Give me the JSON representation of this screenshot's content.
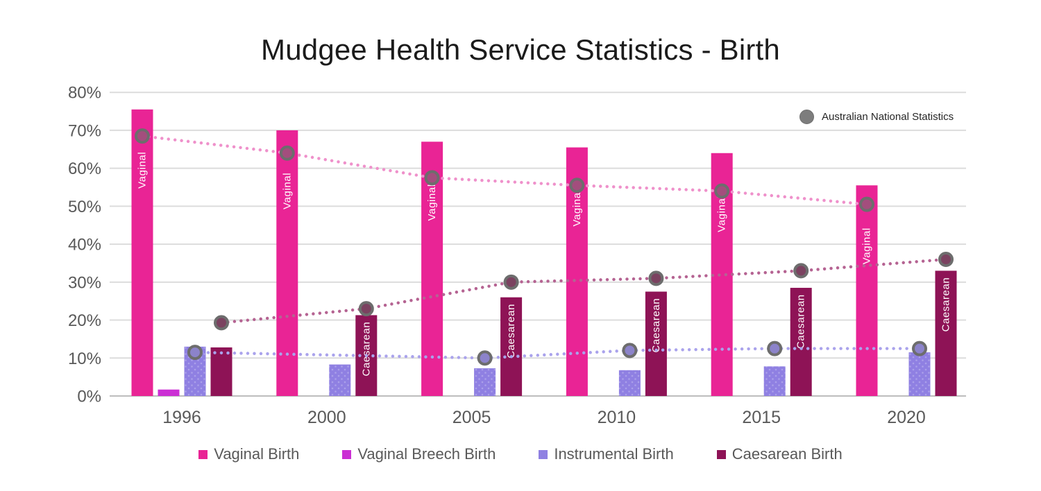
{
  "chart_data": {
    "type": "bar",
    "title": "Mudgee Health Service Statistics - Birth",
    "categories": [
      "1996",
      "2000",
      "2005",
      "2010",
      "2015",
      "2020"
    ],
    "y_axis": {
      "min": 0,
      "max": 80,
      "step": 10,
      "tick_labels": [
        "0%",
        "10%",
        "20%",
        "30%",
        "40%",
        "50%",
        "60%",
        "70%",
        "80%"
      ],
      "grid": true
    },
    "series": [
      {
        "name": "Vaginal Birth",
        "color": "#e92495",
        "in_bar_label": "Vaginal",
        "label_shown": [
          true,
          true,
          true,
          true,
          true,
          true
        ],
        "values": [
          75.5,
          70,
          67,
          65.5,
          64,
          55.5
        ]
      },
      {
        "name": "Vaginal Breech Birth",
        "color": "#cb2fd4",
        "in_bar_label": "",
        "label_shown": [
          false,
          false,
          false,
          false,
          false,
          false
        ],
        "values": [
          1.7,
          0,
          0,
          0,
          0,
          0
        ]
      },
      {
        "name": "Instrumental Birth",
        "color": "#8f80e2",
        "in_bar_label": "",
        "label_shown": [
          false,
          false,
          false,
          false,
          false,
          false
        ],
        "values": [
          13,
          8.3,
          7.3,
          6.8,
          7.8,
          11.5
        ]
      },
      {
        "name": "Caesarean Birth",
        "color": "#8e1356",
        "in_bar_label": "Caesarean",
        "label_shown": [
          false,
          true,
          true,
          true,
          true,
          true
        ],
        "values": [
          12.8,
          21.3,
          26,
          27.5,
          28.5,
          33
        ]
      }
    ],
    "national_series": [
      {
        "name": "Vaginal",
        "line_color": "#ef91cb",
        "marker_fill": "#a34e7d",
        "attach_to": 0,
        "values": [
          68.5,
          64,
          57.5,
          55.5,
          54,
          50.5
        ]
      },
      {
        "name": "Instrumental",
        "line_color": "#aaa3ec",
        "marker_fill": "#8c83ca",
        "attach_to": 2,
        "values": [
          11.5,
          null,
          10,
          12,
          12.5,
          12.5
        ]
      },
      {
        "name": "Caesarean",
        "line_color": "#b56392",
        "marker_fill": "#7b4260",
        "attach_to": 3,
        "values": [
          19.3,
          23,
          30,
          31,
          33,
          36
        ]
      }
    ],
    "marker_ring_color": "#6d6d6d",
    "marker_legend": "Australian National Statistics",
    "legend_position": "bottom"
  }
}
